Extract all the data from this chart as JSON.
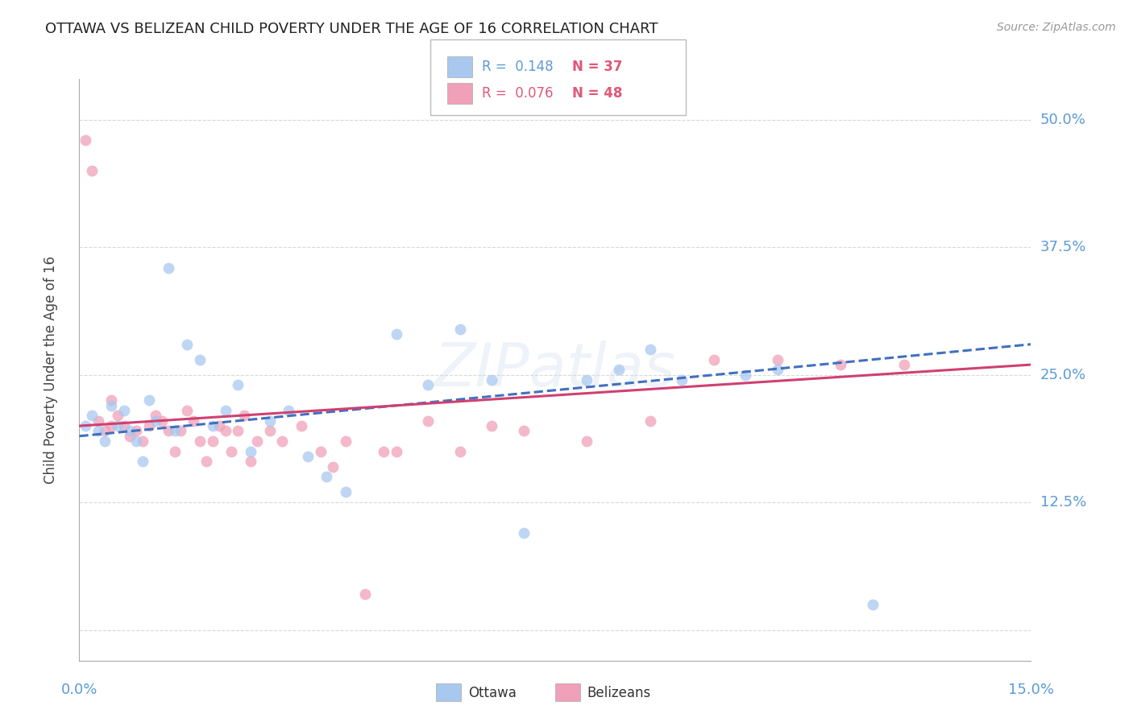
{
  "title": "OTTAWA VS BELIZEAN CHILD POVERTY UNDER THE AGE OF 16 CORRELATION CHART",
  "source": "Source: ZipAtlas.com",
  "ylabel": "Child Poverty Under the Age of 16",
  "xlim": [
    0.0,
    0.15
  ],
  "ylim": [
    -0.03,
    0.54
  ],
  "yticks": [
    0.0,
    0.125,
    0.25,
    0.375,
    0.5
  ],
  "ytick_labels": [
    "",
    "12.5%",
    "25.0%",
    "37.5%",
    "50.0%"
  ],
  "xticks": [
    0.0,
    0.05,
    0.1,
    0.15
  ],
  "xtick_labels": [
    "0.0%",
    "",
    "",
    "15.0%"
  ],
  "legend_r1": "R =  0.148",
  "legend_n1": "N = 37",
  "legend_r2": "R =  0.076",
  "legend_n2": "N = 48",
  "bg_color": "#ffffff",
  "grid_color": "#d8d8d8",
  "ottawa_color": "#a8c8f0",
  "belizean_color": "#f0a0b8",
  "trend_ottawa_color": "#4070c0",
  "trend_belizean_color": "#d04070",
  "marker_size": 100,
  "marker_alpha": 0.75,
  "ottawa_x": [
    0.001,
    0.002,
    0.003,
    0.004,
    0.005,
    0.006,
    0.007,
    0.008,
    0.009,
    0.01,
    0.011,
    0.012,
    0.014,
    0.015,
    0.017,
    0.019,
    0.021,
    0.023,
    0.025,
    0.027,
    0.03,
    0.033,
    0.036,
    0.039,
    0.042,
    0.05,
    0.055,
    0.06,
    0.065,
    0.07,
    0.08,
    0.085,
    0.09,
    0.095,
    0.105,
    0.11,
    0.125
  ],
  "ottawa_y": [
    0.2,
    0.21,
    0.195,
    0.185,
    0.22,
    0.2,
    0.215,
    0.195,
    0.185,
    0.165,
    0.225,
    0.205,
    0.355,
    0.195,
    0.28,
    0.265,
    0.2,
    0.215,
    0.24,
    0.175,
    0.205,
    0.215,
    0.17,
    0.15,
    0.135,
    0.29,
    0.24,
    0.295,
    0.245,
    0.095,
    0.245,
    0.255,
    0.275,
    0.245,
    0.25,
    0.255,
    0.025
  ],
  "belizean_x": [
    0.001,
    0.002,
    0.003,
    0.004,
    0.005,
    0.005,
    0.006,
    0.007,
    0.008,
    0.009,
    0.01,
    0.011,
    0.012,
    0.013,
    0.014,
    0.015,
    0.016,
    0.017,
    0.018,
    0.019,
    0.02,
    0.021,
    0.022,
    0.023,
    0.024,
    0.025,
    0.026,
    0.027,
    0.028,
    0.03,
    0.032,
    0.035,
    0.038,
    0.04,
    0.042,
    0.045,
    0.048,
    0.05,
    0.055,
    0.06,
    0.065,
    0.07,
    0.08,
    0.09,
    0.1,
    0.11,
    0.12,
    0.13
  ],
  "belizean_y": [
    0.48,
    0.45,
    0.205,
    0.195,
    0.2,
    0.225,
    0.21,
    0.2,
    0.19,
    0.195,
    0.185,
    0.2,
    0.21,
    0.205,
    0.195,
    0.175,
    0.195,
    0.215,
    0.205,
    0.185,
    0.165,
    0.185,
    0.2,
    0.195,
    0.175,
    0.195,
    0.21,
    0.165,
    0.185,
    0.195,
    0.185,
    0.2,
    0.175,
    0.16,
    0.185,
    0.035,
    0.175,
    0.175,
    0.205,
    0.175,
    0.2,
    0.195,
    0.185,
    0.205,
    0.265,
    0.265,
    0.26,
    0.26
  ],
  "trend_start_x": 0.0,
  "trend_end_x": 0.15,
  "trend_ottawa_y0": 0.19,
  "trend_ottawa_y1": 0.28,
  "trend_belizean_y0": 0.2,
  "trend_belizean_y1": 0.26
}
